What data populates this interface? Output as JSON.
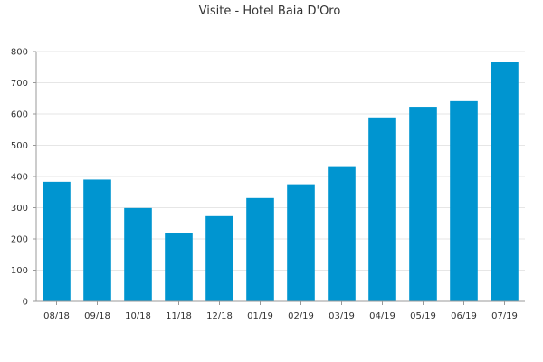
{
  "chart_data": {
    "type": "bar",
    "title": "Visite - Hotel Baia D'Oro",
    "xlabel": "",
    "ylabel": "",
    "categories": [
      "08/18",
      "09/18",
      "10/18",
      "11/18",
      "12/18",
      "01/19",
      "02/19",
      "03/19",
      "04/19",
      "05/19",
      "06/19",
      "07/19"
    ],
    "values": [
      383,
      390,
      299,
      218,
      273,
      331,
      375,
      433,
      589,
      623,
      641,
      766
    ],
    "ylim": [
      0,
      800
    ],
    "yticks": [
      "0",
      "100",
      "200",
      "300",
      "400",
      "500",
      "600",
      "700",
      "800"
    ],
    "grid": true,
    "legend": "none",
    "bar_color": "#0095d0"
  }
}
